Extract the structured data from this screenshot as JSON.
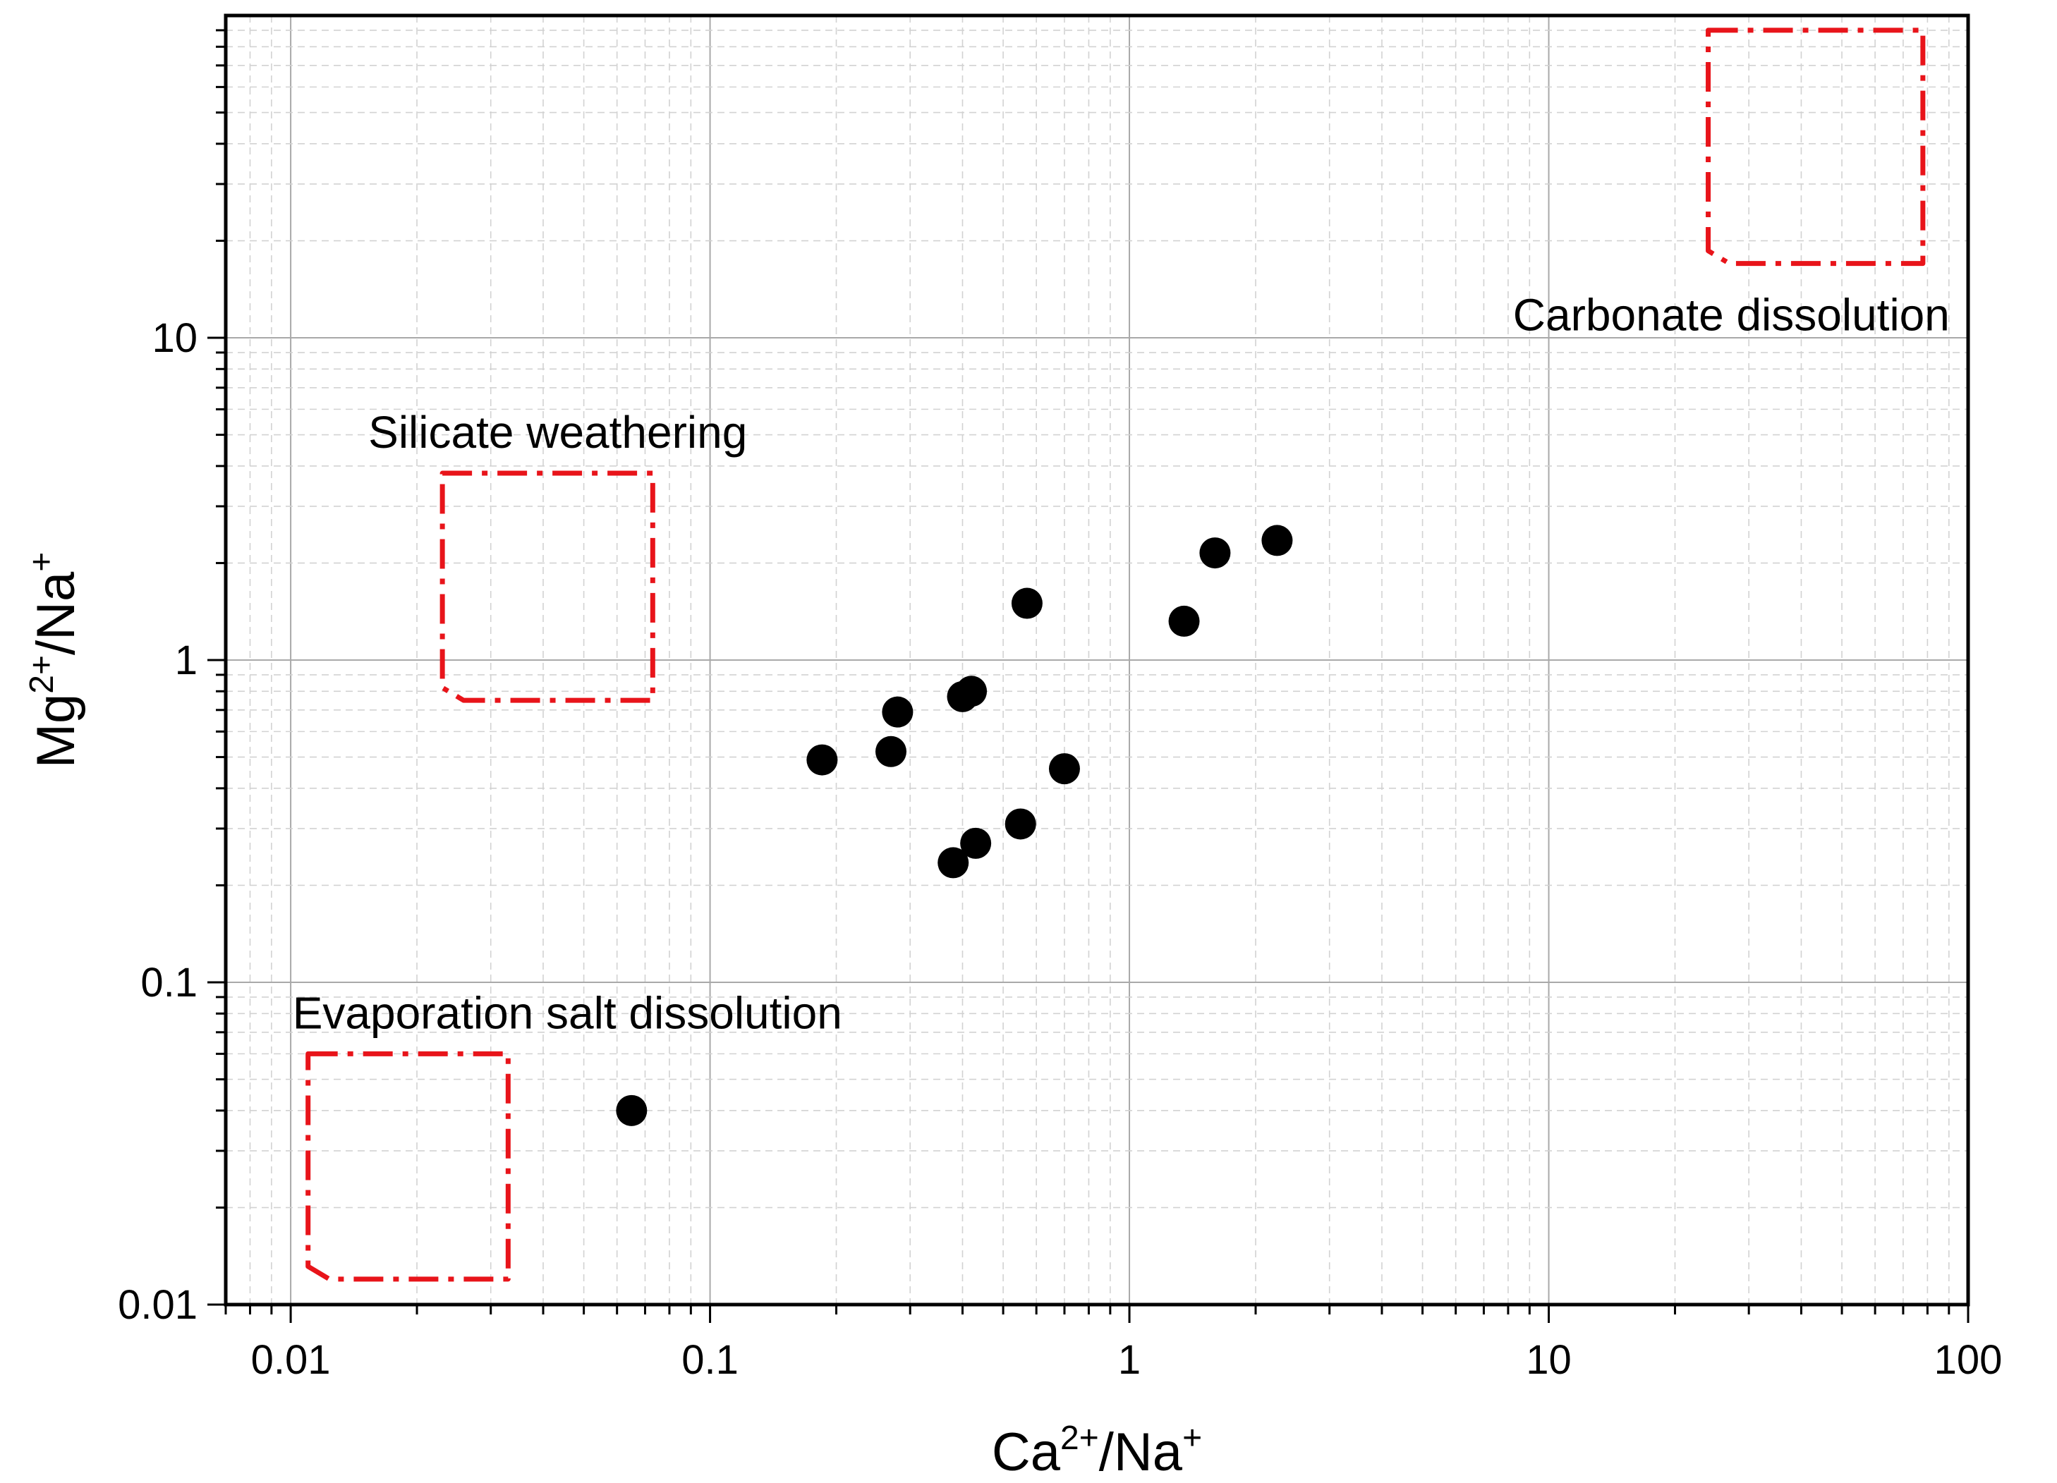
{
  "chart_data": {
    "type": "scatter",
    "x_scale": "log",
    "y_scale": "log",
    "xlim": [
      0.007,
      100
    ],
    "ylim": [
      0.01,
      100
    ],
    "xlabel": {
      "base": "Ca",
      "sup": "2+",
      "rest": "/Na",
      "sup2": "+"
    },
    "ylabel": {
      "base": "Mg",
      "sup": "2+",
      "rest": "/Na",
      "sup2": "+"
    },
    "x_ticks": [
      {
        "value": 0.01,
        "label": "0.01"
      },
      {
        "value": 0.1,
        "label": "0.1"
      },
      {
        "value": 1,
        "label": "1"
      },
      {
        "value": 10,
        "label": "10"
      },
      {
        "value": 100,
        "label": "100"
      }
    ],
    "y_ticks": [
      {
        "value": 0.01,
        "label": "0.01"
      },
      {
        "value": 0.1,
        "label": "0.1"
      },
      {
        "value": 1,
        "label": "1"
      },
      {
        "value": 10,
        "label": "10"
      }
    ],
    "grid": true,
    "marker_color": "#000000",
    "region_color": "#e8141a",
    "points": [
      {
        "x": 0.065,
        "y": 0.04
      },
      {
        "x": 0.185,
        "y": 0.49
      },
      {
        "x": 0.27,
        "y": 0.52
      },
      {
        "x": 0.28,
        "y": 0.69
      },
      {
        "x": 0.38,
        "y": 0.235
      },
      {
        "x": 0.4,
        "y": 0.77
      },
      {
        "x": 0.42,
        "y": 0.8
      },
      {
        "x": 0.43,
        "y": 0.27
      },
      {
        "x": 0.55,
        "y": 0.31
      },
      {
        "x": 0.57,
        "y": 1.5
      },
      {
        "x": 0.7,
        "y": 0.46
      },
      {
        "x": 1.35,
        "y": 1.32
      },
      {
        "x": 1.6,
        "y": 2.15
      },
      {
        "x": 2.25,
        "y": 2.35
      }
    ],
    "regions": [
      {
        "name": "Silicate weathering",
        "x": [
          0.023,
          0.073
        ],
        "y": [
          0.75,
          3.8
        ],
        "label_pos": "top-left"
      },
      {
        "name": "Evaporation salt dissolution",
        "x": [
          0.011,
          0.033
        ],
        "y": [
          0.012,
          0.06
        ],
        "label_pos": "top-left"
      },
      {
        "name": "Carbonate dissolution",
        "x": [
          24,
          78
        ],
        "y": [
          17,
          90
        ],
        "label_pos": "bottom-right"
      }
    ]
  }
}
